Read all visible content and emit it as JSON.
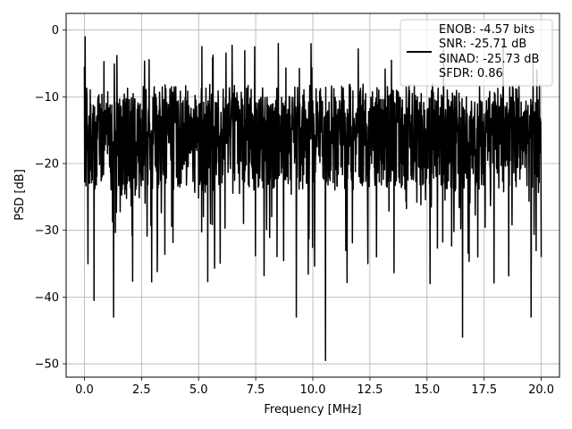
{
  "chart_data": {
    "type": "line",
    "xlabel": "Frequency [MHz]",
    "ylabel": "PSD [dB]",
    "xlim": [
      -0.8,
      20.8
    ],
    "ylim": [
      -52,
      2.5
    ],
    "xticks": [
      0,
      2.5,
      5,
      7.5,
      10,
      12.5,
      15,
      17.5,
      20
    ],
    "xtick_labels": [
      "0.0",
      "2.5",
      "5.0",
      "7.5",
      "10.0",
      "12.5",
      "15.0",
      "17.5",
      "20.0"
    ],
    "yticks": [
      0,
      -10,
      -20,
      -30,
      -40,
      -50
    ],
    "ytick_labels": [
      "0",
      "−10",
      "−20",
      "−30",
      "−40",
      "−50"
    ],
    "grid": true,
    "legend_position": "top-right",
    "series": [
      {
        "color": "#000000",
        "x_range": [
          0,
          20
        ],
        "approx_noise_floor_db": -15,
        "approx_peak_db": -1,
        "approx_min_db": -49.5
      }
    ],
    "legend_lines": [
      "ENOB: -4.57 bits",
      "SNR: -25.71 dB",
      "SINAD: -25.73 dB",
      "SFDR: 0.86"
    ]
  }
}
